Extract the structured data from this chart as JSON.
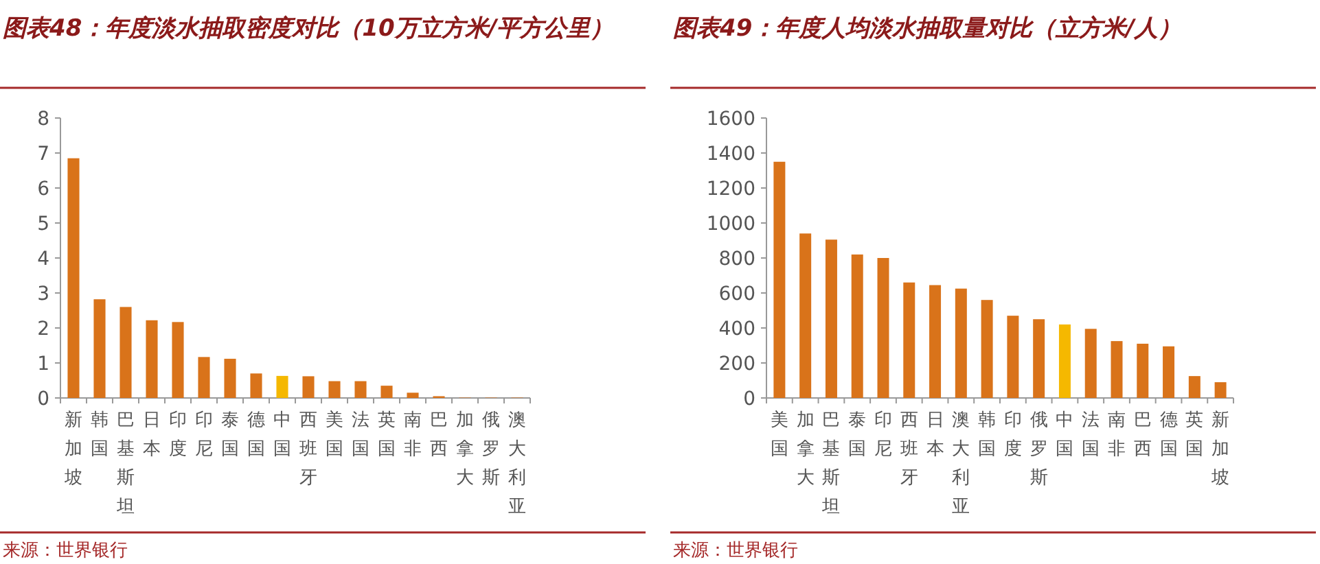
{
  "chart_data": [
    {
      "type": "bar",
      "title": "图表48：年度淡水抽取密度对比（10万立方米/平方公里）",
      "categories": [
        "新加坡",
        "韩国",
        "巴基斯坦",
        "日本",
        "印度",
        "印尼",
        "泰国",
        "德国",
        "中国",
        "西班牙",
        "美国",
        "法国",
        "英国",
        "南非",
        "巴西",
        "加拿大",
        "俄罗斯",
        "澳大利亚"
      ],
      "values": [
        6.85,
        2.82,
        2.6,
        2.22,
        2.17,
        1.17,
        1.12,
        0.7,
        0.63,
        0.62,
        0.48,
        0.48,
        0.35,
        0.15,
        0.05,
        0.01,
        0.01,
        0.01
      ],
      "colors": [
        "#d9731a",
        "#d9731a",
        "#d9731a",
        "#d9731a",
        "#d9731a",
        "#d9731a",
        "#d9731a",
        "#d9731a",
        "#f5b800",
        "#d9731a",
        "#d9731a",
        "#d9731a",
        "#d9731a",
        "#d9731a",
        "#d9731a",
        "#d9731a",
        "#d9731a",
        "#d9731a"
      ],
      "ylim": [
        0,
        8
      ],
      "yticks": [
        0,
        1,
        2,
        3,
        4,
        5,
        6,
        7,
        8
      ],
      "annotations": [
        "来源：世界银行"
      ]
    },
    {
      "type": "bar",
      "title": "图表49：年度人均淡水抽取量对比（立方米/人）",
      "categories": [
        "美国",
        "加拿大",
        "巴基斯坦",
        "泰国",
        "印尼",
        "西班牙",
        "日本",
        "澳大利亚",
        "韩国",
        "印度",
        "俄罗斯",
        "中国",
        "法国",
        "南非",
        "巴西",
        "德国",
        "英国",
        "新加坡"
      ],
      "values": [
        1350,
        940,
        905,
        820,
        800,
        660,
        645,
        625,
        560,
        470,
        450,
        420,
        395,
        325,
        310,
        295,
        125,
        90
      ],
      "colors": [
        "#d9731a",
        "#d9731a",
        "#d9731a",
        "#d9731a",
        "#d9731a",
        "#d9731a",
        "#d9731a",
        "#d9731a",
        "#d9731a",
        "#d9731a",
        "#d9731a",
        "#f5b800",
        "#d9731a",
        "#d9731a",
        "#d9731a",
        "#d9731a",
        "#d9731a",
        "#d9731a"
      ],
      "ylim": [
        0,
        1600
      ],
      "yticks": [
        0,
        200,
        400,
        600,
        800,
        1000,
        1200,
        1400,
        1600
      ],
      "annotations": [
        "来源：世界银行"
      ]
    }
  ]
}
